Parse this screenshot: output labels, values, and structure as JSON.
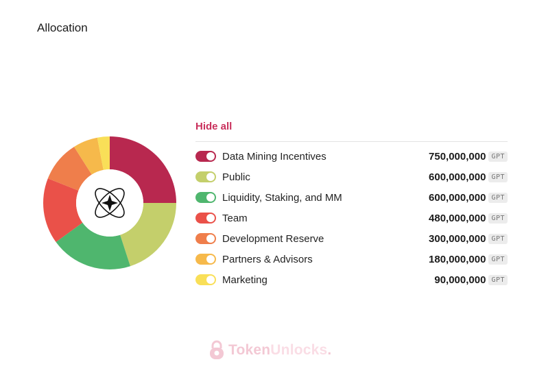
{
  "header": {
    "title": "Allocation"
  },
  "legend": {
    "hide_all_label": "Hide all"
  },
  "watermark": {
    "part1": "Token",
    "part2": "Unlocks",
    "dot": "."
  },
  "chart_data": {
    "type": "pie",
    "style": "donut",
    "unit": "GPT",
    "center_icon": "sparkle-atom-logo",
    "categories": [
      "Data Mining Incentives",
      "Public",
      "Liquidity, Staking, and MM",
      "Team",
      "Development Reserve",
      "Partners & Advisors",
      "Marketing"
    ],
    "values": [
      750000000,
      600000000,
      600000000,
      480000000,
      300000000,
      180000000,
      90000000
    ],
    "value_labels": [
      "750,000,000",
      "600,000,000",
      "600,000,000",
      "480,000,000",
      "300,000,000",
      "180,000,000",
      "90,000,000"
    ],
    "colors": [
      "#b8284f",
      "#c4cf6b",
      "#4fb66e",
      "#ea5149",
      "#ef7e4b",
      "#f6b94b",
      "#f9df58"
    ],
    "toggles_on": [
      true,
      true,
      true,
      true,
      true,
      true,
      true
    ]
  }
}
